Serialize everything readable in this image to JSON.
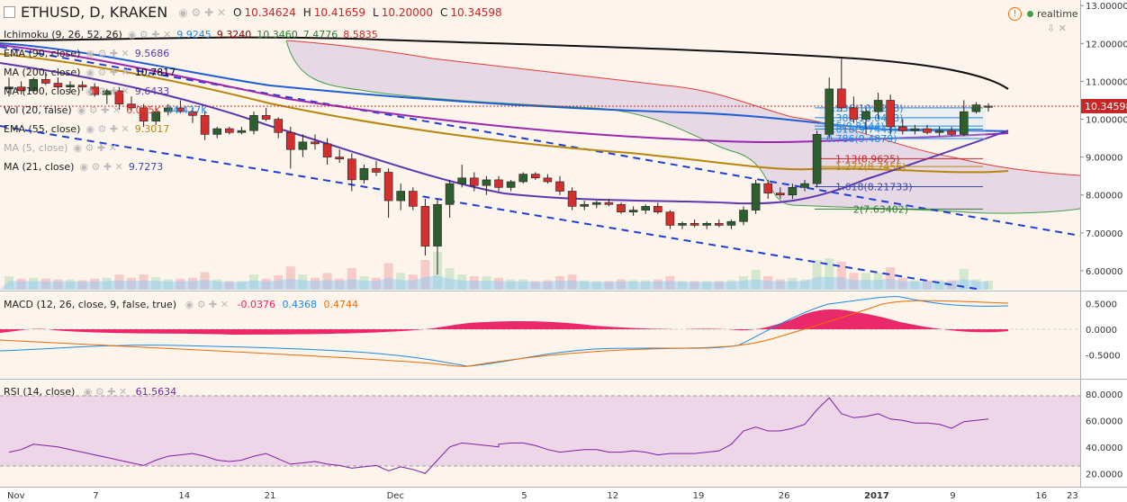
{
  "header": {
    "symbol": "ETHUSD, D, KRAKEN",
    "ohlc": {
      "o_label": "O",
      "o": "10.34624",
      "h_label": "H",
      "h": "10.41659",
      "l_label": "L",
      "l": "10.20000",
      "c_label": "C",
      "c": "10.34598"
    },
    "realtime": "realtime"
  },
  "indicators": [
    {
      "label": "Ichimoku (9, 26, 52, 26)",
      "values": [
        "9.9245",
        "9.3240",
        "10.3460",
        "7.4776",
        "8.5835"
      ],
      "colors": [
        "#1e88e5",
        "#8b0000",
        "#2e7d32",
        "#2e7d32",
        "#c62828"
      ]
    },
    {
      "label": "EMA (90, close)",
      "values": [
        "9.5686"
      ],
      "colors": [
        "#5e35b1"
      ]
    },
    {
      "label": "MA (200, close)",
      "values": [
        "10.7817"
      ],
      "colors": [
        "#000000"
      ]
    },
    {
      "label": "MA (100, close)",
      "values": [
        "9.6433"
      ],
      "colors": [
        "#5e35b1"
      ]
    },
    {
      "label": "Vol (20, false)",
      "values": [
        "6.045K",
        "44.427K"
      ],
      "colors": [
        "#e53935",
        "#1e88e5"
      ]
    },
    {
      "label": "EMA (55, close)",
      "values": [
        "9.3017"
      ],
      "colors": [
        "#b8860b"
      ]
    },
    {
      "label": "MA (5, close)",
      "values": [],
      "colors": []
    },
    {
      "label": "MA (21, close)",
      "values": [
        "9.7273"
      ],
      "colors": [
        "#3949ab"
      ]
    }
  ],
  "fib_labels": [
    {
      "text": "0.236(10.3258)",
      "price": 10.3,
      "color": "#1e88e5"
    },
    {
      "text": "0.382(10.0433)",
      "price": 10.04,
      "color": "#1e88e5"
    },
    {
      "text": "0.5(9.8144)",
      "price": 9.82,
      "color": "#1e88e5"
    },
    {
      "text": "0.618(9.7443)",
      "price": 9.74,
      "color": "#1e88e5"
    },
    {
      "text": "0.786(9.4879)",
      "price": 9.49,
      "color": "#1e88e5"
    },
    {
      "text": "1.13(8.9625)",
      "price": 8.96,
      "color": "#c62828"
    },
    {
      "text": "1.272(8.7456)",
      "price": 8.75,
      "color": "#b8860b"
    },
    {
      "text": "1.618(8.21733)",
      "price": 8.22,
      "color": "#3949ab"
    },
    {
      "text": "2(7.63402)",
      "price": 7.63,
      "color": "#2e7d32"
    }
  ],
  "price_axis": {
    "ticks": [
      "13.00000",
      "12.00000",
      "11.00000",
      "10.00000",
      "9.00000",
      "8.00000",
      "7.00000",
      "6.00000"
    ],
    "last": "10.34598"
  },
  "macd": {
    "label": "MACD (12, 26, close, 9, false, true)",
    "values": [
      "-0.0376",
      "0.4368",
      "0.4744"
    ],
    "colors": [
      "#e91e63",
      "#1e88e5",
      "#ef6c00"
    ],
    "ticks": [
      "0.5000",
      "0.0000",
      "-0.5000"
    ]
  },
  "rsi": {
    "label": "RSI (14, close)",
    "value": "61.5634",
    "ticks": [
      "80.0000",
      "60.0000",
      "40.0000",
      "20.0000"
    ]
  },
  "time_axis": [
    "Nov",
    "7",
    "14",
    "21",
    "Dec",
    "5",
    "12",
    "19",
    "26",
    "2017",
    "9",
    "16",
    "23"
  ],
  "chart_data": {
    "type": "candlestick",
    "symbol": "ETHUSD",
    "timeframe": "D",
    "candles": [
      {
        "o": 10.8,
        "h": 11.1,
        "l": 10.6,
        "c": 10.85
      },
      {
        "o": 10.85,
        "h": 11.0,
        "l": 10.65,
        "c": 10.75
      },
      {
        "o": 10.75,
        "h": 11.1,
        "l": 10.7,
        "c": 11.05
      },
      {
        "o": 11.05,
        "h": 11.25,
        "l": 10.9,
        "c": 10.95
      },
      {
        "o": 10.95,
        "h": 11.1,
        "l": 10.8,
        "c": 10.85
      },
      {
        "o": 10.85,
        "h": 11.0,
        "l": 10.7,
        "c": 10.9
      },
      {
        "o": 10.9,
        "h": 11.0,
        "l": 10.75,
        "c": 10.85
      },
      {
        "o": 10.85,
        "h": 10.95,
        "l": 10.6,
        "c": 10.65
      },
      {
        "o": 10.65,
        "h": 10.8,
        "l": 10.4,
        "c": 10.75
      },
      {
        "o": 10.75,
        "h": 10.85,
        "l": 10.25,
        "c": 10.4
      },
      {
        "o": 10.4,
        "h": 10.6,
        "l": 10.2,
        "c": 10.3
      },
      {
        "o": 10.3,
        "h": 10.4,
        "l": 9.8,
        "c": 9.95
      },
      {
        "o": 9.95,
        "h": 10.3,
        "l": 9.85,
        "c": 10.2
      },
      {
        "o": 10.2,
        "h": 10.4,
        "l": 10.1,
        "c": 10.3
      },
      {
        "o": 10.3,
        "h": 10.5,
        "l": 10.15,
        "c": 10.2
      },
      {
        "o": 10.2,
        "h": 10.3,
        "l": 9.9,
        "c": 10.1
      },
      {
        "o": 10.1,
        "h": 10.2,
        "l": 9.45,
        "c": 9.6
      },
      {
        "o": 9.6,
        "h": 9.8,
        "l": 9.5,
        "c": 9.75
      },
      {
        "o": 9.75,
        "h": 9.8,
        "l": 9.6,
        "c": 9.65
      },
      {
        "o": 9.65,
        "h": 9.8,
        "l": 9.6,
        "c": 9.7
      },
      {
        "o": 9.7,
        "h": 10.2,
        "l": 9.6,
        "c": 10.1
      },
      {
        "o": 10.1,
        "h": 10.3,
        "l": 9.95,
        "c": 10.0
      },
      {
        "o": 10.0,
        "h": 10.05,
        "l": 9.5,
        "c": 9.65
      },
      {
        "o": 9.65,
        "h": 9.8,
        "l": 8.7,
        "c": 9.2
      },
      {
        "o": 9.2,
        "h": 9.6,
        "l": 9.0,
        "c": 9.4
      },
      {
        "o": 9.4,
        "h": 9.6,
        "l": 9.2,
        "c": 9.35
      },
      {
        "o": 9.35,
        "h": 9.5,
        "l": 8.8,
        "c": 9.0
      },
      {
        "o": 9.0,
        "h": 9.2,
        "l": 8.85,
        "c": 8.95
      },
      {
        "o": 8.95,
        "h": 9.1,
        "l": 8.1,
        "c": 8.4
      },
      {
        "o": 8.4,
        "h": 8.8,
        "l": 8.3,
        "c": 8.7
      },
      {
        "o": 8.7,
        "h": 8.9,
        "l": 8.5,
        "c": 8.6
      },
      {
        "o": 8.6,
        "h": 8.7,
        "l": 7.4,
        "c": 7.85
      },
      {
        "o": 7.85,
        "h": 8.3,
        "l": 7.6,
        "c": 8.1
      },
      {
        "o": 8.1,
        "h": 8.2,
        "l": 7.6,
        "c": 7.7
      },
      {
        "o": 7.7,
        "h": 7.9,
        "l": 6.4,
        "c": 6.65
      },
      {
        "o": 6.65,
        "h": 7.9,
        "l": 5.9,
        "c": 7.75
      },
      {
        "o": 7.75,
        "h": 8.4,
        "l": 7.4,
        "c": 8.3
      },
      {
        "o": 8.3,
        "h": 8.8,
        "l": 8.2,
        "c": 8.45
      },
      {
        "o": 8.45,
        "h": 8.6,
        "l": 8.1,
        "c": 8.25
      },
      {
        "o": 8.25,
        "h": 8.5,
        "l": 8.0,
        "c": 8.4
      },
      {
        "o": 8.4,
        "h": 8.5,
        "l": 8.1,
        "c": 8.2
      },
      {
        "o": 8.2,
        "h": 8.4,
        "l": 8.1,
        "c": 8.35
      },
      {
        "o": 8.35,
        "h": 8.6,
        "l": 8.3,
        "c": 8.55
      },
      {
        "o": 8.55,
        "h": 8.6,
        "l": 8.4,
        "c": 8.45
      },
      {
        "o": 8.45,
        "h": 8.55,
        "l": 8.3,
        "c": 8.35
      },
      {
        "o": 8.35,
        "h": 8.5,
        "l": 8.0,
        "c": 8.1
      },
      {
        "o": 8.1,
        "h": 8.2,
        "l": 7.6,
        "c": 7.7
      },
      {
        "o": 7.7,
        "h": 7.85,
        "l": 7.6,
        "c": 7.75
      },
      {
        "o": 7.75,
        "h": 7.85,
        "l": 7.65,
        "c": 7.8
      },
      {
        "o": 7.8,
        "h": 7.9,
        "l": 7.7,
        "c": 7.75
      },
      {
        "o": 7.75,
        "h": 7.8,
        "l": 7.5,
        "c": 7.55
      },
      {
        "o": 7.55,
        "h": 7.7,
        "l": 7.45,
        "c": 7.6
      },
      {
        "o": 7.6,
        "h": 7.75,
        "l": 7.5,
        "c": 7.7
      },
      {
        "o": 7.7,
        "h": 7.8,
        "l": 7.5,
        "c": 7.55
      },
      {
        "o": 7.55,
        "h": 7.6,
        "l": 7.1,
        "c": 7.2
      },
      {
        "o": 7.2,
        "h": 7.3,
        "l": 7.1,
        "c": 7.25
      },
      {
        "o": 7.25,
        "h": 7.35,
        "l": 7.15,
        "c": 7.2
      },
      {
        "o": 7.2,
        "h": 7.3,
        "l": 7.1,
        "c": 7.25
      },
      {
        "o": 7.25,
        "h": 7.35,
        "l": 7.15,
        "c": 7.2
      },
      {
        "o": 7.2,
        "h": 7.35,
        "l": 7.1,
        "c": 7.3
      },
      {
        "o": 7.3,
        "h": 7.7,
        "l": 7.2,
        "c": 7.6
      },
      {
        "o": 7.6,
        "h": 8.4,
        "l": 7.5,
        "c": 8.3
      },
      {
        "o": 8.3,
        "h": 8.4,
        "l": 7.9,
        "c": 8.05
      },
      {
        "o": 8.05,
        "h": 8.2,
        "l": 7.9,
        "c": 8.0
      },
      {
        "o": 8.0,
        "h": 8.3,
        "l": 7.9,
        "c": 8.2
      },
      {
        "o": 8.2,
        "h": 8.4,
        "l": 8.1,
        "c": 8.3
      },
      {
        "o": 8.3,
        "h": 9.7,
        "l": 8.2,
        "c": 9.6
      },
      {
        "o": 9.6,
        "h": 11.1,
        "l": 9.5,
        "c": 10.8
      },
      {
        "o": 10.8,
        "h": 11.6,
        "l": 10.2,
        "c": 10.3
      },
      {
        "o": 10.3,
        "h": 10.6,
        "l": 9.9,
        "c": 10.0
      },
      {
        "o": 10.0,
        "h": 10.3,
        "l": 9.6,
        "c": 10.2
      },
      {
        "o": 10.2,
        "h": 10.7,
        "l": 10.0,
        "c": 10.5
      },
      {
        "o": 10.5,
        "h": 10.65,
        "l": 9.6,
        "c": 9.8
      },
      {
        "o": 9.8,
        "h": 10.0,
        "l": 9.6,
        "c": 9.7
      },
      {
        "o": 9.7,
        "h": 9.85,
        "l": 9.6,
        "c": 9.75
      },
      {
        "o": 9.75,
        "h": 9.85,
        "l": 9.6,
        "c": 9.65
      },
      {
        "o": 9.65,
        "h": 9.8,
        "l": 9.55,
        "c": 9.7
      },
      {
        "o": 9.7,
        "h": 9.8,
        "l": 9.55,
        "c": 9.6
      },
      {
        "o": 9.6,
        "h": 10.5,
        "l": 9.55,
        "c": 10.2
      },
      {
        "o": 10.2,
        "h": 10.45,
        "l": 10.15,
        "c": 10.38
      },
      {
        "o": 10.35,
        "h": 10.42,
        "l": 10.2,
        "c": 10.35
      }
    ],
    "ylim": [
      5.5,
      13.1
    ],
    "xlabels": [
      "Nov",
      "7",
      "14",
      "21",
      "Dec",
      "5",
      "12",
      "19",
      "26",
      "2017",
      "9",
      "16",
      "23"
    ],
    "last_close": 10.34598
  }
}
